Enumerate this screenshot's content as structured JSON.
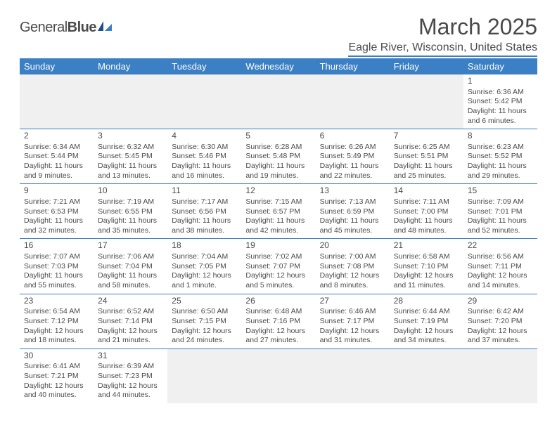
{
  "logo": {
    "text1": "General",
    "text2": "Blue"
  },
  "header": {
    "title": "March 2025",
    "location": "Eagle River, Wisconsin, United States"
  },
  "colors": {
    "primary": "#3b7fc4",
    "text": "#4a4a4a",
    "bg": "#ffffff",
    "blank_bg": "#f0f0f0"
  },
  "day_names": [
    "Sunday",
    "Monday",
    "Tuesday",
    "Wednesday",
    "Thursday",
    "Friday",
    "Saturday"
  ],
  "weeks": [
    [
      null,
      null,
      null,
      null,
      null,
      null,
      {
        "n": "1",
        "sr": "Sunrise: 6:36 AM",
        "ss": "Sunset: 5:42 PM",
        "dl": "Daylight: 11 hours",
        "dl2": "and 6 minutes."
      }
    ],
    [
      {
        "n": "2",
        "sr": "Sunrise: 6:34 AM",
        "ss": "Sunset: 5:44 PM",
        "dl": "Daylight: 11 hours",
        "dl2": "and 9 minutes."
      },
      {
        "n": "3",
        "sr": "Sunrise: 6:32 AM",
        "ss": "Sunset: 5:45 PM",
        "dl": "Daylight: 11 hours",
        "dl2": "and 13 minutes."
      },
      {
        "n": "4",
        "sr": "Sunrise: 6:30 AM",
        "ss": "Sunset: 5:46 PM",
        "dl": "Daylight: 11 hours",
        "dl2": "and 16 minutes."
      },
      {
        "n": "5",
        "sr": "Sunrise: 6:28 AM",
        "ss": "Sunset: 5:48 PM",
        "dl": "Daylight: 11 hours",
        "dl2": "and 19 minutes."
      },
      {
        "n": "6",
        "sr": "Sunrise: 6:26 AM",
        "ss": "Sunset: 5:49 PM",
        "dl": "Daylight: 11 hours",
        "dl2": "and 22 minutes."
      },
      {
        "n": "7",
        "sr": "Sunrise: 6:25 AM",
        "ss": "Sunset: 5:51 PM",
        "dl": "Daylight: 11 hours",
        "dl2": "and 25 minutes."
      },
      {
        "n": "8",
        "sr": "Sunrise: 6:23 AM",
        "ss": "Sunset: 5:52 PM",
        "dl": "Daylight: 11 hours",
        "dl2": "and 29 minutes."
      }
    ],
    [
      {
        "n": "9",
        "sr": "Sunrise: 7:21 AM",
        "ss": "Sunset: 6:53 PM",
        "dl": "Daylight: 11 hours",
        "dl2": "and 32 minutes."
      },
      {
        "n": "10",
        "sr": "Sunrise: 7:19 AM",
        "ss": "Sunset: 6:55 PM",
        "dl": "Daylight: 11 hours",
        "dl2": "and 35 minutes."
      },
      {
        "n": "11",
        "sr": "Sunrise: 7:17 AM",
        "ss": "Sunset: 6:56 PM",
        "dl": "Daylight: 11 hours",
        "dl2": "and 38 minutes."
      },
      {
        "n": "12",
        "sr": "Sunrise: 7:15 AM",
        "ss": "Sunset: 6:57 PM",
        "dl": "Daylight: 11 hours",
        "dl2": "and 42 minutes."
      },
      {
        "n": "13",
        "sr": "Sunrise: 7:13 AM",
        "ss": "Sunset: 6:59 PM",
        "dl": "Daylight: 11 hours",
        "dl2": "and 45 minutes."
      },
      {
        "n": "14",
        "sr": "Sunrise: 7:11 AM",
        "ss": "Sunset: 7:00 PM",
        "dl": "Daylight: 11 hours",
        "dl2": "and 48 minutes."
      },
      {
        "n": "15",
        "sr": "Sunrise: 7:09 AM",
        "ss": "Sunset: 7:01 PM",
        "dl": "Daylight: 11 hours",
        "dl2": "and 52 minutes."
      }
    ],
    [
      {
        "n": "16",
        "sr": "Sunrise: 7:07 AM",
        "ss": "Sunset: 7:03 PM",
        "dl": "Daylight: 11 hours",
        "dl2": "and 55 minutes."
      },
      {
        "n": "17",
        "sr": "Sunrise: 7:06 AM",
        "ss": "Sunset: 7:04 PM",
        "dl": "Daylight: 11 hours",
        "dl2": "and 58 minutes."
      },
      {
        "n": "18",
        "sr": "Sunrise: 7:04 AM",
        "ss": "Sunset: 7:05 PM",
        "dl": "Daylight: 12 hours",
        "dl2": "and 1 minute."
      },
      {
        "n": "19",
        "sr": "Sunrise: 7:02 AM",
        "ss": "Sunset: 7:07 PM",
        "dl": "Daylight: 12 hours",
        "dl2": "and 5 minutes."
      },
      {
        "n": "20",
        "sr": "Sunrise: 7:00 AM",
        "ss": "Sunset: 7:08 PM",
        "dl": "Daylight: 12 hours",
        "dl2": "and 8 minutes."
      },
      {
        "n": "21",
        "sr": "Sunrise: 6:58 AM",
        "ss": "Sunset: 7:10 PM",
        "dl": "Daylight: 12 hours",
        "dl2": "and 11 minutes."
      },
      {
        "n": "22",
        "sr": "Sunrise: 6:56 AM",
        "ss": "Sunset: 7:11 PM",
        "dl": "Daylight: 12 hours",
        "dl2": "and 14 minutes."
      }
    ],
    [
      {
        "n": "23",
        "sr": "Sunrise: 6:54 AM",
        "ss": "Sunset: 7:12 PM",
        "dl": "Daylight: 12 hours",
        "dl2": "and 18 minutes."
      },
      {
        "n": "24",
        "sr": "Sunrise: 6:52 AM",
        "ss": "Sunset: 7:14 PM",
        "dl": "Daylight: 12 hours",
        "dl2": "and 21 minutes."
      },
      {
        "n": "25",
        "sr": "Sunrise: 6:50 AM",
        "ss": "Sunset: 7:15 PM",
        "dl": "Daylight: 12 hours",
        "dl2": "and 24 minutes."
      },
      {
        "n": "26",
        "sr": "Sunrise: 6:48 AM",
        "ss": "Sunset: 7:16 PM",
        "dl": "Daylight: 12 hours",
        "dl2": "and 27 minutes."
      },
      {
        "n": "27",
        "sr": "Sunrise: 6:46 AM",
        "ss": "Sunset: 7:17 PM",
        "dl": "Daylight: 12 hours",
        "dl2": "and 31 minutes."
      },
      {
        "n": "28",
        "sr": "Sunrise: 6:44 AM",
        "ss": "Sunset: 7:19 PM",
        "dl": "Daylight: 12 hours",
        "dl2": "and 34 minutes."
      },
      {
        "n": "29",
        "sr": "Sunrise: 6:42 AM",
        "ss": "Sunset: 7:20 PM",
        "dl": "Daylight: 12 hours",
        "dl2": "and 37 minutes."
      }
    ],
    [
      {
        "n": "30",
        "sr": "Sunrise: 6:41 AM",
        "ss": "Sunset: 7:21 PM",
        "dl": "Daylight: 12 hours",
        "dl2": "and 40 minutes."
      },
      {
        "n": "31",
        "sr": "Sunrise: 6:39 AM",
        "ss": "Sunset: 7:23 PM",
        "dl": "Daylight: 12 hours",
        "dl2": "and 44 minutes."
      },
      null,
      null,
      null,
      null,
      null
    ]
  ]
}
